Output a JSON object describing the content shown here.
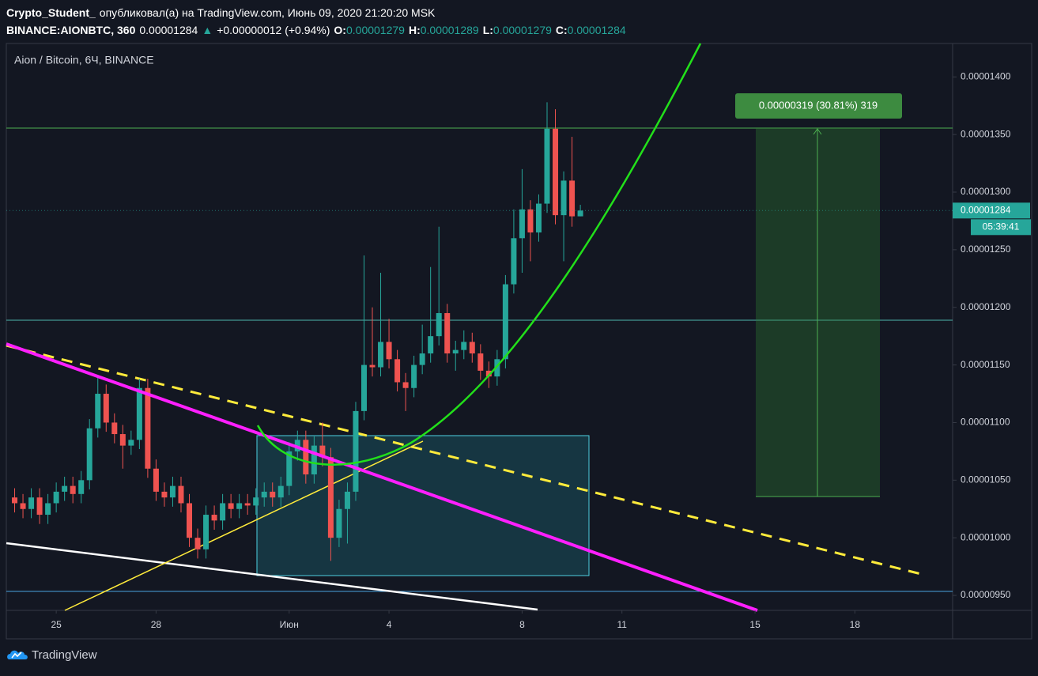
{
  "header": {
    "author": "Crypto_Student_",
    "published": "опубликовал(а) на TradingView.com, Июнь 09, 2020 21:20:20 MSK",
    "symbol": "BINANCE:AIONBTC, 360",
    "arrow": "▲",
    "change": "+0.00000012 (+0.94%)",
    "o": "O:",
    "h": "H:",
    "l": "L:",
    "c": "C:"
  },
  "chart_data": {
    "type": "candlestick",
    "title": "Aion / Bitcoin, 6Ч, BINANCE",
    "up_color": "#26a69a",
    "down_color": "#ef5350",
    "x": [
      "2020-05-23T18:00",
      "2020-05-24T00:00",
      "2020-05-24T06:00",
      "2020-05-24T12:00",
      "2020-05-24T18:00",
      "2020-05-25T00:00",
      "2020-05-25T06:00",
      "2020-05-25T12:00",
      "2020-05-25T18:00",
      "2020-05-26T00:00",
      "2020-05-26T06:00",
      "2020-05-26T12:00",
      "2020-05-26T18:00",
      "2020-05-27T00:00",
      "2020-05-27T06:00",
      "2020-05-27T12:00",
      "2020-05-27T18:00",
      "2020-05-28T00:00",
      "2020-05-28T06:00",
      "2020-05-28T12:00",
      "2020-05-28T18:00",
      "2020-05-29T00:00",
      "2020-05-29T06:00",
      "2020-05-29T12:00",
      "2020-05-29T18:00",
      "2020-05-30T00:00",
      "2020-05-30T06:00",
      "2020-05-30T12:00",
      "2020-05-30T18:00",
      "2020-05-31T00:00",
      "2020-05-31T06:00",
      "2020-05-31T12:00",
      "2020-05-31T18:00",
      "2020-06-01T00:00",
      "2020-06-01T06:00",
      "2020-06-01T12:00",
      "2020-06-01T18:00",
      "2020-06-02T00:00",
      "2020-06-02T06:00",
      "2020-06-02T12:00",
      "2020-06-02T18:00",
      "2020-06-03T00:00",
      "2020-06-03T06:00",
      "2020-06-03T12:00",
      "2020-06-03T18:00",
      "2020-06-04T00:00",
      "2020-06-04T06:00",
      "2020-06-04T12:00",
      "2020-06-04T18:00",
      "2020-06-05T00:00",
      "2020-06-05T06:00",
      "2020-06-05T12:00",
      "2020-06-05T18:00",
      "2020-06-06T00:00",
      "2020-06-06T06:00",
      "2020-06-06T12:00",
      "2020-06-06T18:00",
      "2020-06-07T00:00",
      "2020-06-07T06:00",
      "2020-06-07T12:00",
      "2020-06-07T18:00",
      "2020-06-08T00:00",
      "2020-06-08T06:00",
      "2020-06-08T12:00",
      "2020-06-08T18:00",
      "2020-06-09T00:00",
      "2020-06-09T06:00",
      "2020-06-09T12:00",
      "2020-06-09T18:00"
    ],
    "open": [
      1.035e-05,
      1.03e-05,
      1.025e-05,
      1.035e-05,
      1.02e-05,
      1.03e-05,
      1.04e-05,
      1.045e-05,
      1.038e-05,
      1.05e-05,
      1.095e-05,
      1.125e-05,
      1.1e-05,
      1.09e-05,
      1.08e-05,
      1.085e-05,
      1.13e-05,
      1.06e-05,
      1.04e-05,
      1.035e-05,
      1.045e-05,
      1.03e-05,
      1e-05,
      9.9e-06,
      1.02e-05,
      1.015e-05,
      1.03e-05,
      1.025e-05,
      1.03e-05,
      1.028e-05,
      1.035e-05,
      1.04e-05,
      1.035e-05,
      1.045e-05,
      1.075e-05,
      1.085e-05,
      1.055e-05,
      1.08e-05,
      1.07e-05,
      1e-05,
      1.025e-05,
      1.04e-05,
      1.11e-05,
      1.15e-05,
      1.148e-05,
      1.17e-05,
      1.155e-05,
      1.135e-05,
      1.13e-05,
      1.15e-05,
      1.16e-05,
      1.175e-05,
      1.195e-05,
      1.16e-05,
      1.163e-05,
      1.17e-05,
      1.16e-05,
      1.145e-05,
      1.14e-05,
      1.155e-05,
      1.22e-05,
      1.26e-05,
      1.285e-05,
      1.265e-05,
      1.29e-05,
      1.355e-05,
      1.28e-05,
      1.31e-05,
      1.279e-05
    ],
    "high": [
      1.043e-05,
      1.038e-05,
      1.043e-05,
      1.043e-05,
      1.038e-05,
      1.048e-05,
      1.053e-05,
      1.053e-05,
      1.058e-05,
      1.103e-05,
      1.14e-05,
      1.133e-05,
      1.108e-05,
      1.098e-05,
      1.093e-05,
      1.138e-05,
      1.138e-05,
      1.068e-05,
      1.048e-05,
      1.053e-05,
      1.053e-05,
      1.038e-05,
      1.008e-05,
      1.028e-05,
      1.028e-05,
      1.038e-05,
      1.038e-05,
      1.038e-05,
      1.038e-05,
      1.043e-05,
      1.048e-05,
      1.048e-05,
      1.053e-05,
      1.083e-05,
      1.093e-05,
      1.093e-05,
      1.088e-05,
      1.1e-05,
      1.078e-05,
      1.033e-05,
      1.048e-05,
      1.118e-05,
      1.245e-05,
      1.2e-05,
      1.23e-05,
      1.19e-05,
      1.163e-05,
      1.143e-05,
      1.158e-05,
      1.185e-05,
      1.235e-05,
      1.27e-05,
      1.203e-05,
      1.171e-05,
      1.18e-05,
      1.178e-05,
      1.168e-05,
      1.153e-05,
      1.163e-05,
      1.228e-05,
      1.285e-05,
      1.32e-05,
      1.293e-05,
      1.298e-05,
      1.378e-05,
      1.372e-05,
      1.318e-05,
      1.348e-05,
      1.289e-05
    ],
    "low": [
      1.022e-05,
      1.017e-05,
      1.017e-05,
      1.012e-05,
      1.012e-05,
      1.022e-05,
      1.032e-05,
      1.03e-05,
      1.03e-05,
      1.042e-05,
      1.087e-05,
      1.092e-05,
      1.082e-05,
      1.06e-05,
      1.072e-05,
      1.077e-05,
      1.052e-05,
      1.032e-05,
      1.027e-05,
      1.027e-05,
      1.022e-05,
      9.92e-06,
      9.82e-06,
      9.82e-06,
      1.007e-05,
      1.007e-05,
      1.017e-05,
      1.017e-05,
      1.02e-05,
      1.02e-05,
      1.027e-05,
      1.027e-05,
      1.027e-05,
      1.037e-05,
      1.067e-05,
      1.047e-05,
      1.047e-05,
      1.062e-05,
      9.8e-06,
      9.92e-06,
      9.95e-06,
      1.032e-05,
      1.102e-05,
      1.14e-05,
      1.14e-05,
      1.147e-05,
      1.127e-05,
      1.11e-05,
      1.122e-05,
      1.142e-05,
      1.152e-05,
      1.167e-05,
      1.152e-05,
      1.145e-05,
      1.155e-05,
      1.152e-05,
      1.137e-05,
      1.13e-05,
      1.132e-05,
      1.147e-05,
      1.212e-05,
      1.23e-05,
      1.24e-05,
      1.257e-05,
      1.282e-05,
      1.272e-05,
      1.24e-05,
      1.27e-05,
      1.279e-05
    ],
    "close": [
      1.03e-05,
      1.025e-05,
      1.035e-05,
      1.02e-05,
      1.03e-05,
      1.04e-05,
      1.045e-05,
      1.038e-05,
      1.05e-05,
      1.095e-05,
      1.125e-05,
      1.1e-05,
      1.09e-05,
      1.08e-05,
      1.085e-05,
      1.13e-05,
      1.06e-05,
      1.04e-05,
      1.035e-05,
      1.045e-05,
      1.03e-05,
      1e-05,
      9.9e-06,
      1.02e-05,
      1.015e-05,
      1.03e-05,
      1.025e-05,
      1.03e-05,
      1.028e-05,
      1.035e-05,
      1.04e-05,
      1.035e-05,
      1.045e-05,
      1.075e-05,
      1.085e-05,
      1.055e-05,
      1.08e-05,
      1.07e-05,
      1e-05,
      1.025e-05,
      1.04e-05,
      1.11e-05,
      1.15e-05,
      1.148e-05,
      1.17e-05,
      1.155e-05,
      1.135e-05,
      1.13e-05,
      1.15e-05,
      1.16e-05,
      1.175e-05,
      1.195e-05,
      1.16e-05,
      1.163e-05,
      1.17e-05,
      1.16e-05,
      1.145e-05,
      1.14e-05,
      1.155e-05,
      1.22e-05,
      1.26e-05,
      1.285e-05,
      1.265e-05,
      1.29e-05,
      1.355e-05,
      1.28e-05,
      1.31e-05,
      1.279e-05,
      1.284e-05
    ],
    "xlim": [
      "2020-05-23T12:00",
      "2020-06-20T22:30"
    ],
    "xticks": [
      {
        "value": "2020-05-25T00:00",
        "label": "25"
      },
      {
        "value": "2020-05-28T00:00",
        "label": "28"
      },
      {
        "value": "2020-06-01T00:00",
        "label": "Июн"
      },
      {
        "value": "2020-06-04T00:00",
        "label": "4"
      },
      {
        "value": "2020-06-08T00:00",
        "label": "8"
      },
      {
        "value": "2020-06-11T00:00",
        "label": "11"
      },
      {
        "value": "2020-06-15T00:00",
        "label": "15"
      },
      {
        "value": "2020-06-18T00:00",
        "label": "18"
      }
    ],
    "ylim": [
      9.37e-06,
      1.429e-05
    ],
    "yticks": [
      {
        "value": 9.5e-06,
        "label": "0.00000950"
      },
      {
        "value": 1e-05,
        "label": "0.00001000"
      },
      {
        "value": 1.05e-05,
        "label": "0.00001050"
      },
      {
        "value": 1.1e-05,
        "label": "0.00001100"
      },
      {
        "value": 1.15e-05,
        "label": "0.00001150"
      },
      {
        "value": 1.2e-05,
        "label": "0.00001200"
      },
      {
        "value": 1.25e-05,
        "label": "0.00001250"
      },
      {
        "value": 1.3e-05,
        "label": "0.00001300"
      },
      {
        "value": 1.35e-05,
        "label": "0.00001350"
      },
      {
        "value": 1.4e-05,
        "label": "0.00001400"
      }
    ],
    "countdown": "05:39:41",
    "measure_label": "0.00000319 (30.81%) 319"
  },
  "footer": {
    "brand": "TradingView"
  }
}
